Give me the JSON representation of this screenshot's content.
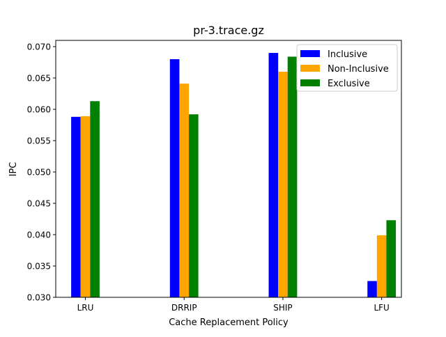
{
  "chart_data": {
    "type": "bar",
    "title": "pr-3.trace.gz",
    "xlabel": "Cache Replacement Policy",
    "ylabel": "IPC",
    "categories": [
      "LRU",
      "DRRIP",
      "SHIP",
      "LFU"
    ],
    "ylim": [
      0.03,
      0.071
    ],
    "yticks": [
      "0.030",
      "0.035",
      "0.040",
      "0.045",
      "0.050",
      "0.055",
      "0.060",
      "0.065",
      "0.070"
    ],
    "grid": false,
    "legend_position": "top-right",
    "series": [
      {
        "name": "Inclusive",
        "color": "#0000ff",
        "values": [
          0.0588,
          0.068,
          0.069,
          0.0326
        ]
      },
      {
        "name": "Non-Inclusive",
        "color": "#ffa500",
        "values": [
          0.0589,
          0.0641,
          0.066,
          0.0399
        ]
      },
      {
        "name": "Exclusive",
        "color": "#008000",
        "values": [
          0.0613,
          0.0592,
          0.0684,
          0.0423
        ]
      }
    ]
  }
}
